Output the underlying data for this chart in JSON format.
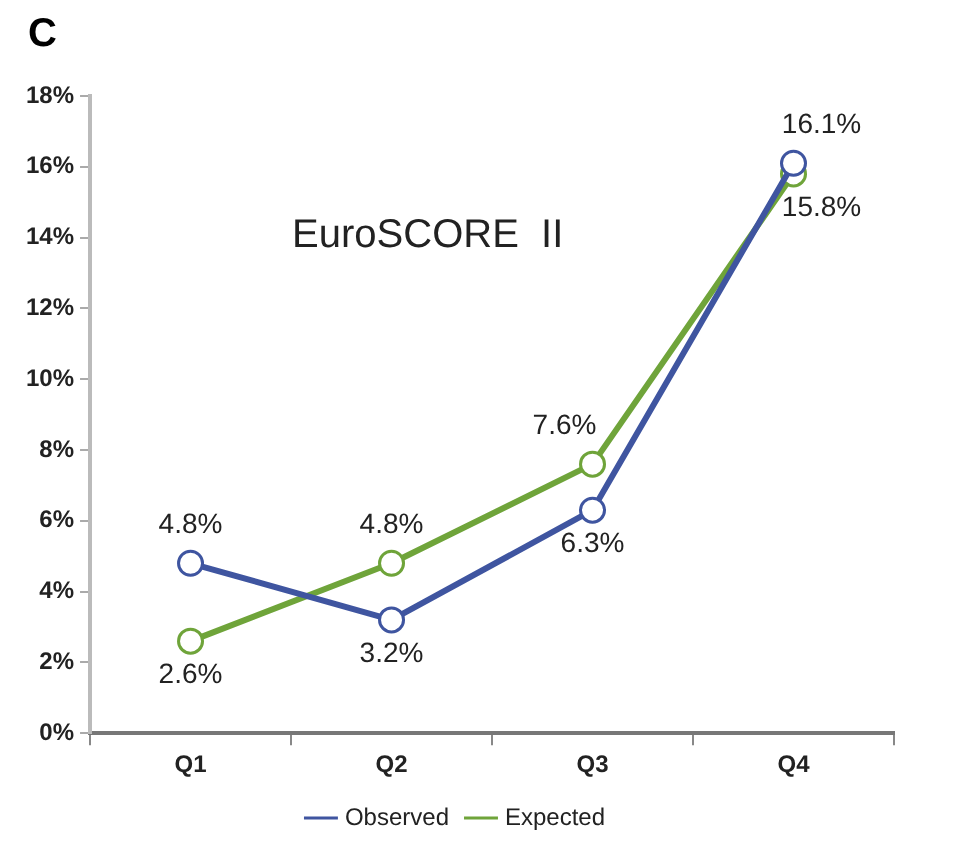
{
  "chart_data": {
    "type": "line",
    "title": "C",
    "annotations": [
      "EuroSCORE  II"
    ],
    "categories": [
      "Q1",
      "Q2",
      "Q3",
      "Q4"
    ],
    "series": [
      {
        "name": "Observed",
        "color": "#3f55a0",
        "values": [
          4.8,
          3.2,
          6.3,
          16.1
        ],
        "value_labels": [
          "4.8%",
          "3.2%",
          "6.3%",
          "16.1%"
        ]
      },
      {
        "name": "Expected",
        "color": "#6fa43a",
        "values": [
          2.6,
          4.8,
          7.6,
          15.8
        ],
        "value_labels": [
          "2.6%",
          "4.8%",
          "7.6%",
          "15.8%"
        ]
      }
    ],
    "ylim": [
      0,
      18
    ],
    "yticks": [
      {
        "value": 0,
        "label": "0%"
      },
      {
        "value": 2,
        "label": "2%"
      },
      {
        "value": 4,
        "label": "4%"
      },
      {
        "value": 6,
        "label": "6%"
      },
      {
        "value": 8,
        "label": "8%"
      },
      {
        "value": 10,
        "label": "10%"
      },
      {
        "value": 12,
        "label": "12%"
      },
      {
        "value": 14,
        "label": "14%"
      },
      {
        "value": 16,
        "label": "16%"
      },
      {
        "value": 18,
        "label": "18%"
      }
    ],
    "grid": false,
    "legend": "bottom",
    "marker": "circle",
    "line_style": "solid"
  }
}
